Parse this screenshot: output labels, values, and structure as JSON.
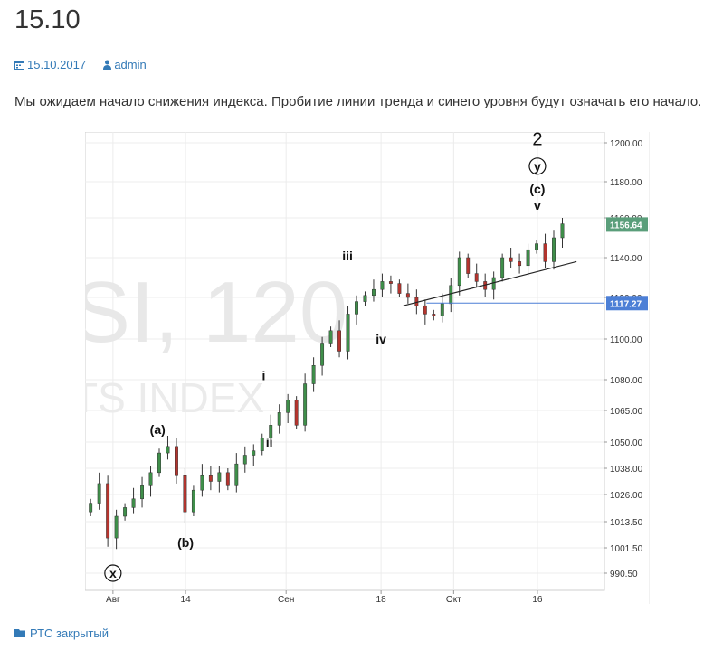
{
  "post": {
    "title": "15.10",
    "date": "15.10.2017",
    "author": "admin",
    "text": "Мы ожидаем начало снижения индекса. Пробитие линии тренда и синего уровня будут означать его начало.",
    "category": "РТС закрытый",
    "link_color": "#337ab7"
  },
  "chart_data": {
    "type": "candlestick",
    "watermark": {
      "symbol": "SI, 120",
      "subtitle": "TS INDEX"
    },
    "y_ticks": [
      990.5,
      1001.5,
      1013.5,
      1026.0,
      1038.0,
      1050.0,
      1065.0,
      1080.0,
      1100.0,
      1120.0,
      1140.0,
      1160.0,
      1180.0,
      1200.0
    ],
    "y_tick_labels": [
      "990.50",
      "1001.50",
      "1013.50",
      "1026.00",
      "1038.00",
      "1050.00",
      "1065.00",
      "1080.00",
      "1100.00",
      "1120.00",
      "1140.00",
      "1160.00",
      "1180.00",
      "1200.00"
    ],
    "x_ticks": [
      {
        "day": 0,
        "label": "Авг"
      },
      {
        "day": 13,
        "label": "14"
      },
      {
        "day": 31,
        "label": "Сен"
      },
      {
        "day": 48,
        "label": "18"
      },
      {
        "day": 61,
        "label": "Окт"
      },
      {
        "day": 76,
        "label": "16"
      }
    ],
    "x_range_days": [
      -5,
      88
    ],
    "closes": [
      1022,
      1031,
      1006,
      1016,
      1020,
      1024,
      1030,
      1036,
      1045,
      1048,
      1035,
      1018,
      1028,
      1035,
      1032,
      1036,
      1030,
      1040,
      1044,
      1046,
      1052,
      1058,
      1064,
      1070,
      1058,
      1078,
      1087,
      1098,
      1104,
      1094,
      1112,
      1118,
      1121,
      1124,
      1128,
      1127,
      1122,
      1120,
      1116,
      1112,
      1111,
      1117,
      1126,
      1140,
      1132,
      1128,
      1124,
      1130,
      1140,
      1138,
      1136,
      1144,
      1147,
      1138,
      1150,
      1157
    ],
    "last_price": {
      "value": 1156.64,
      "label": "1156.64",
      "color": "#5a9e7a"
    },
    "blue_level": {
      "value": 1117.27,
      "label": "1117.27",
      "color": "#4c7fd6"
    },
    "trend_line": {
      "start": {
        "day": 52,
        "price": 1116
      },
      "end": {
        "day": 83,
        "price": 1138
      }
    },
    "wave_labels": [
      {
        "text": "x",
        "day": 0,
        "price": 990.5,
        "circled": true
      },
      {
        "text": "(a)",
        "day": 8,
        "price": 1056
      },
      {
        "text": "(b)",
        "day": 13,
        "price": 1004
      },
      {
        "text": "i",
        "day": 27,
        "price": 1082
      },
      {
        "text": "ii",
        "day": 28,
        "price": 1050
      },
      {
        "text": "iii",
        "day": 42,
        "price": 1141
      },
      {
        "text": "iv",
        "day": 48,
        "price": 1100
      },
      {
        "text": "2",
        "day": 76,
        "price": 1202,
        "large": true
      },
      {
        "text": "y",
        "day": 76,
        "price": 1188,
        "circled": true
      },
      {
        "text": "(c)",
        "day": 76,
        "price": 1176
      },
      {
        "text": "v",
        "day": 76,
        "price": 1167
      }
    ],
    "colors": {
      "up": "#3f8f4a",
      "down": "#b5342e"
    },
    "grid": true
  }
}
